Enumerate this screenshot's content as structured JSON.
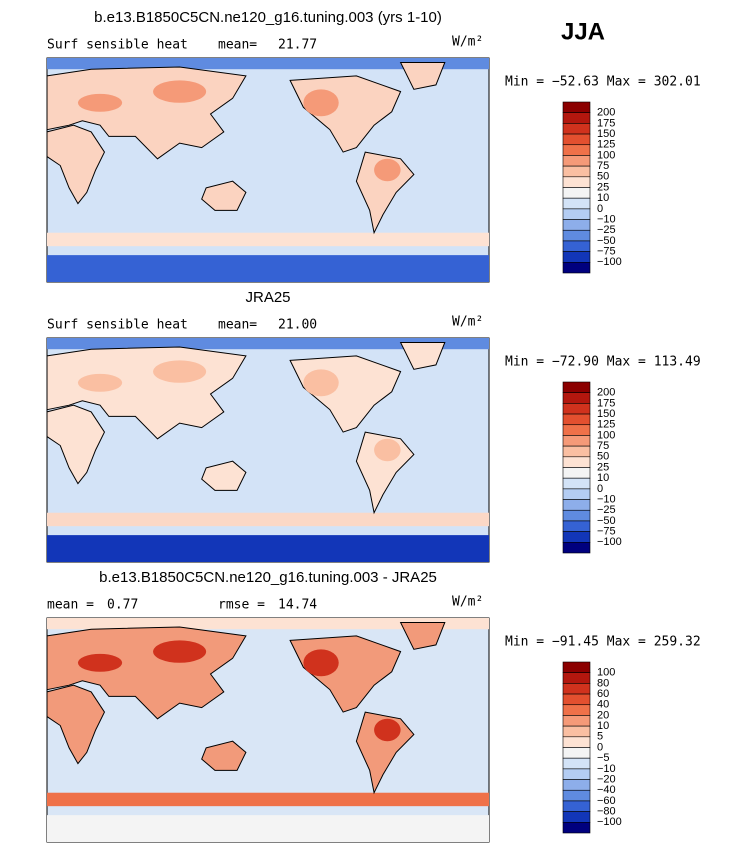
{
  "season": "JJA",
  "panels": [
    {
      "title": "b.e13.B1850C5CN.ne120_g16.tuning.003 (yrs 1-10)",
      "variable": "Surf sensible heat",
      "stats": [
        {
          "label": "mean=",
          "value": "21.77"
        }
      ],
      "units": "W/m²",
      "range": "Min = −52.63 Max = 302.01",
      "colorbar": {
        "labels": [
          "200",
          "175",
          "150",
          "125",
          "100",
          "75",
          "50",
          "25",
          "10",
          "0",
          "−10",
          "−25",
          "−50",
          "−75",
          "−100"
        ]
      }
    },
    {
      "title": "JRA25",
      "variable": "Surf sensible heat",
      "stats": [
        {
          "label": "mean=",
          "value": "21.00"
        }
      ],
      "units": "W/m²",
      "range": "Min = −72.90 Max = 113.49",
      "colorbar": {
        "labels": [
          "200",
          "175",
          "150",
          "125",
          "100",
          "75",
          "50",
          "25",
          "10",
          "0",
          "−10",
          "−25",
          "−50",
          "−75",
          "−100"
        ]
      }
    },
    {
      "title": "b.e13.B1850C5CN.ne120_g16.tuning.003 - JRA25",
      "variable": null,
      "stats": [
        {
          "label": "mean =",
          "value": "0.77"
        },
        {
          "label": "rmse =",
          "value": "14.74"
        }
      ],
      "units": "W/m²",
      "range": "Min = −91.45 Max = 259.32",
      "colorbar": {
        "labels": [
          "100",
          "80",
          "60",
          "40",
          "20",
          "10",
          "5",
          "0",
          "−5",
          "−10",
          "−20",
          "−40",
          "−60",
          "−80",
          "−100"
        ]
      }
    }
  ]
}
